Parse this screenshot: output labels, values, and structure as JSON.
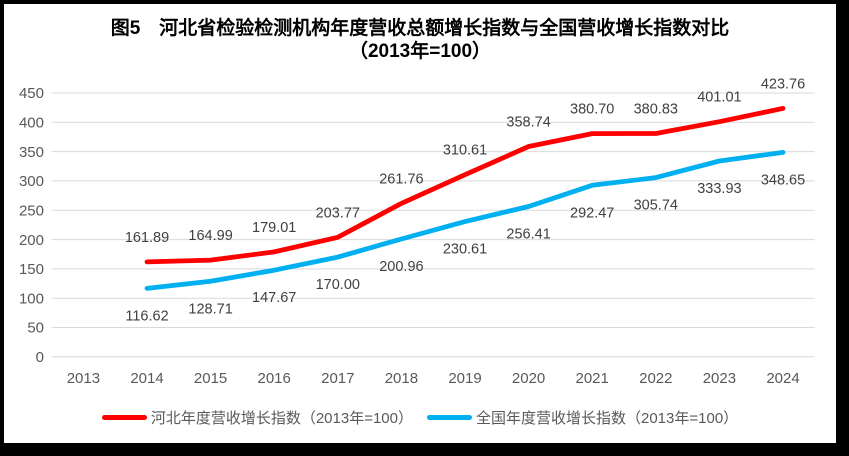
{
  "frame": {
    "border_color": "#000000",
    "background": "#ffffff"
  },
  "chart_data": {
    "type": "line",
    "title": "图5　河北省检验检测机构年度营收总额增长指数与全国营收增长指数对比",
    "subtitle": "（2013年=100）",
    "categories": [
      "2013",
      "2014",
      "2015",
      "2016",
      "2017",
      "2018",
      "2019",
      "2020",
      "2021",
      "2022",
      "2023",
      "2024"
    ],
    "y_ticks": [
      0,
      50,
      100,
      150,
      200,
      250,
      300,
      350,
      400,
      450
    ],
    "ylim": [
      0,
      450
    ],
    "grid": true,
    "legend_position": "bottom",
    "gridline_color": "#D9D9D9",
    "axis_color": "#595959",
    "data_label_color": "#404040",
    "series": [
      {
        "name": "河北年度营收增长指数（2013年=100）",
        "color": "#FF0000",
        "start_index": 1,
        "label_position": "above",
        "values": [
          161.89,
          164.99,
          179.01,
          203.77,
          261.76,
          310.61,
          358.74,
          380.7,
          380.83,
          401.01,
          423.76
        ],
        "labels": [
          "161.89",
          "164.99",
          "179.01",
          "203.77",
          "261.76",
          "310.61",
          "358.74",
          "380.70",
          "380.83",
          "401.01",
          "423.76"
        ]
      },
      {
        "name": "全国年度营收增长指数（2013年=100）",
        "color": "#00B0F0",
        "start_index": 1,
        "label_position": "below",
        "values": [
          116.62,
          128.71,
          147.67,
          170.0,
          200.96,
          230.61,
          256.41,
          292.47,
          305.74,
          333.93,
          348.65
        ],
        "labels": [
          "116.62",
          "128.71",
          "147.67",
          "170.00",
          "200.96",
          "230.61",
          "256.41",
          "292.47",
          "305.74",
          "333.93",
          "348.65"
        ]
      }
    ]
  }
}
